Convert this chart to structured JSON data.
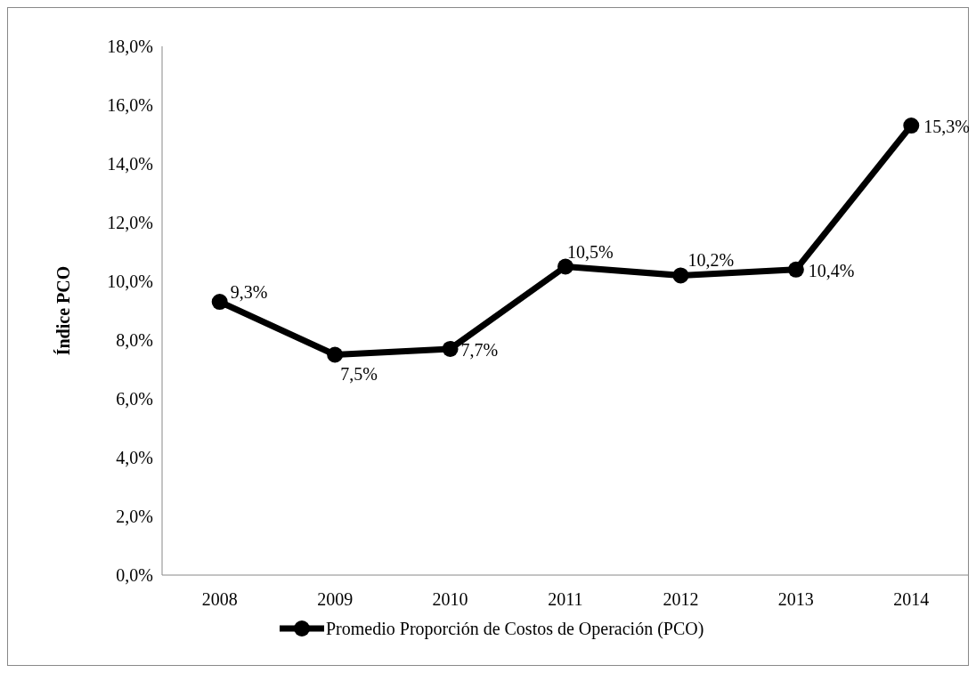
{
  "chart_data": {
    "type": "line",
    "ylabel": "Índice PCO",
    "categories": [
      "2008",
      "2009",
      "2010",
      "2011",
      "2012",
      "2013",
      "2014"
    ],
    "series": [
      {
        "name": "Promedio Proporción de Costos de Operación (PCO)",
        "color": "#000000",
        "values": [
          9.3,
          7.5,
          7.7,
          10.5,
          10.2,
          10.4,
          15.3
        ],
        "value_labels": [
          "9,3%",
          "7,5%",
          "7,7%",
          "10,5%",
          "10,2%",
          "10,4%",
          "15,3%"
        ]
      }
    ],
    "ylim": [
      0,
      18
    ],
    "yticks": [
      {
        "value": 0,
        "label": "0,0%"
      },
      {
        "value": 2,
        "label": "2,0%"
      },
      {
        "value": 4,
        "label": "4,0%"
      },
      {
        "value": 6,
        "label": "6,0%"
      },
      {
        "value": 8,
        "label": "8,0%"
      },
      {
        "value": 10,
        "label": "10,0%"
      },
      {
        "value": 12,
        "label": "12,0%"
      },
      {
        "value": 14,
        "label": "14,0%"
      },
      {
        "value": 16,
        "label": "16,0%"
      },
      {
        "value": 18,
        "label": "18,0%"
      }
    ],
    "grid": false,
    "legend": "bottom",
    "marker": "circle",
    "line_style": "solid"
  }
}
